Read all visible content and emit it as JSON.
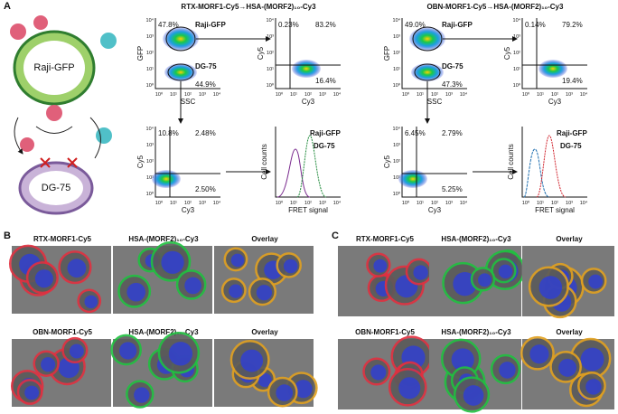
{
  "panels": {
    "A": {
      "label": "A",
      "diagram": {
        "top_cell": "Raji-GFP",
        "bottom_cell": "DG-75"
      },
      "log_ticks": [
        "10⁰",
        "10¹",
        "10²",
        "10³",
        "10⁴"
      ],
      "groups": [
        {
          "title": "RTX-MORF1-Cy5→HSA-(MORF2)₁₀-Cy3",
          "colors": [
            "#1f8a3a",
            "#7b2c8f"
          ],
          "gate_plot": {
            "y_label": "GFP",
            "x_label": "SSC",
            "pops": [
              "Raji-GFP",
              "DG-75"
            ],
            "pcts": [
              "47.8%",
              "44.9%"
            ]
          },
          "raji_plot": {
            "y_label": "Cy5",
            "x_label": "Cy3",
            "pcts": [
              "0.23%",
              "83.2%",
              "16.4%"
            ]
          },
          "dg_plot": {
            "y_label": "Cy5",
            "x_label": "Cy3",
            "pcts": [
              "10.8%",
              "2.48%",
              "2.50%"
            ]
          },
          "histogram": {
            "y_label": "Cell counts",
            "x_label": "FRET signal",
            "legend": [
              "Raji-GFP",
              "DG-75"
            ]
          }
        },
        {
          "title": "OBN-MORF1-Cy5→HSA-(MORF2)₁₀-Cy3",
          "colors": [
            "#d0202a",
            "#1f6fb0"
          ],
          "gate_plot": {
            "y_label": "GFP",
            "x_label": "SSC",
            "pops": [
              "Raji-GFP",
              "DG-75"
            ],
            "pcts": [
              "49.0%",
              "47.3%"
            ]
          },
          "raji_plot": {
            "y_label": "Cy5",
            "x_label": "Cy3",
            "pcts": [
              "0.14%",
              "79.2%",
              "19.4%"
            ]
          },
          "dg_plot": {
            "y_label": "Cy5",
            "x_label": "Cy3",
            "pcts": [
              "6.45%",
              "2.79%",
              "5.25%"
            ]
          },
          "histogram": {
            "y_label": "Cell counts",
            "x_label": "FRET signal",
            "legend": [
              "Raji-GFP",
              "DG-75"
            ]
          }
        }
      ]
    },
    "B": {
      "label": "B",
      "rows": [
        [
          "RTX-MORF1-Cy5",
          "HSA-(MORF2)₁₀-Cy3",
          "Overlay"
        ],
        [
          "OBN-MORF1-Cy5",
          "HSA-(MORF2)₁₀-Cy3",
          "Overlay"
        ]
      ]
    },
    "C": {
      "label": "C",
      "rows": [
        [
          "RTX-MORF1-Cy5",
          "HSA-(MORF2)₁₀-Cy3",
          "Overlay"
        ],
        [
          "OBN-MORF1-Cy5",
          "HSA-(MORF2)₁₀-Cy3",
          "Overlay"
        ]
      ]
    }
  }
}
